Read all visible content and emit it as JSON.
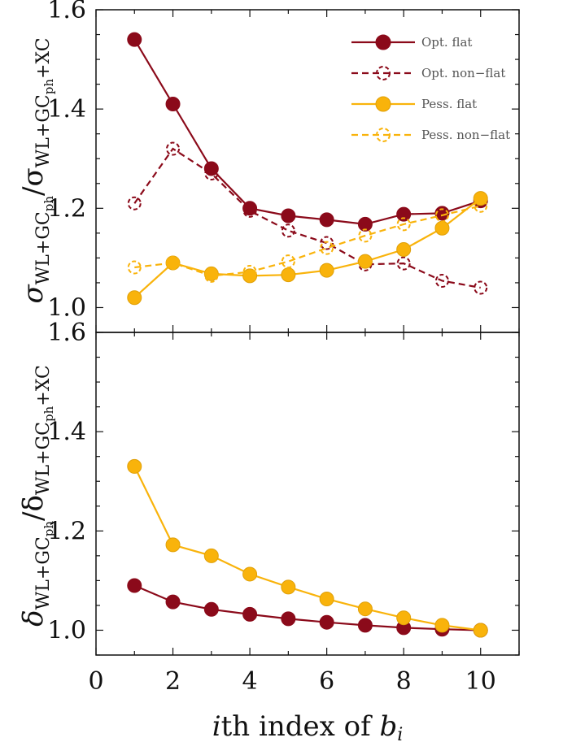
{
  "chart_data": [
    {
      "type": "line",
      "panel": "top",
      "ylabel_main": "σ",
      "ylabel_sub1": "WL+GC",
      "ylabel_subsub1": "ph",
      "ylabel_slash": "/σ",
      "ylabel_sub2": "WL+GC",
      "ylabel_subsub2": "ph",
      "ylabel_sub2_tail": "+XC",
      "xlim": [
        0,
        11
      ],
      "ylim": [
        0.95,
        1.6
      ],
      "yticks": [
        "1.0",
        "1.2",
        "1.4",
        "1.6"
      ],
      "x": [
        1,
        2,
        3,
        4,
        5,
        6,
        7,
        8,
        9,
        10
      ],
      "series": [
        {
          "name": "Opt. flat",
          "color": "#8b0a1a",
          "style": "solid",
          "marker": "filled",
          "values": [
            1.54,
            1.41,
            1.28,
            1.2,
            1.185,
            1.177,
            1.168,
            1.188,
            1.19,
            1.215
          ]
        },
        {
          "name": "Opt. non−flat",
          "color": "#8b0a1a",
          "style": "dashed",
          "marker": "open",
          "values": [
            1.21,
            1.32,
            1.27,
            1.195,
            1.155,
            1.13,
            1.087,
            1.089,
            1.054,
            1.04
          ]
        },
        {
          "name": "Pess. flat",
          "color": "#f9b30b",
          "style": "solid",
          "marker": "filled",
          "values": [
            1.02,
            1.09,
            1.068,
            1.064,
            1.066,
            1.075,
            1.093,
            1.117,
            1.16,
            1.22
          ]
        },
        {
          "name": "Pess. non−flat",
          "color": "#f9b30b",
          "style": "dashed",
          "marker": "open",
          "values": [
            1.081,
            1.09,
            1.064,
            1.072,
            1.093,
            1.12,
            1.145,
            1.168,
            1.186,
            1.205
          ]
        }
      ],
      "legend_position": "top-right"
    },
    {
      "type": "line",
      "panel": "bottom",
      "ylabel_main": "δ",
      "ylabel_sub1": "WL+GC",
      "ylabel_subsub1": "ph",
      "ylabel_slash": "/δ",
      "ylabel_sub2": "WL+GC",
      "ylabel_subsub2": "ph",
      "ylabel_sub2_tail": "+XC",
      "xlim": [
        0,
        11
      ],
      "ylim": [
        0.95,
        1.6
      ],
      "yticks": [
        "1.0",
        "1.2",
        "1.4",
        "1.6"
      ],
      "x": [
        1,
        2,
        3,
        4,
        5,
        6,
        7,
        8,
        9,
        10
      ],
      "series": [
        {
          "name": "Opt. flat",
          "color": "#8b0a1a",
          "style": "solid",
          "marker": "filled",
          "values": [
            1.09,
            1.057,
            1.042,
            1.032,
            1.023,
            1.016,
            1.01,
            1.005,
            1.002,
            1.0
          ]
        },
        {
          "name": "Pess. flat",
          "color": "#f9b30b",
          "style": "solid",
          "marker": "filled",
          "values": [
            1.33,
            1.172,
            1.15,
            1.113,
            1.087,
            1.063,
            1.043,
            1.025,
            1.01,
            1.0
          ]
        }
      ]
    }
  ],
  "xaxis": {
    "ticks": [
      "0",
      "2",
      "4",
      "6",
      "8",
      "10"
    ],
    "label_italic": "i",
    "label_mid": "th index of ",
    "label_var": "b",
    "label_var_sub": "i"
  }
}
